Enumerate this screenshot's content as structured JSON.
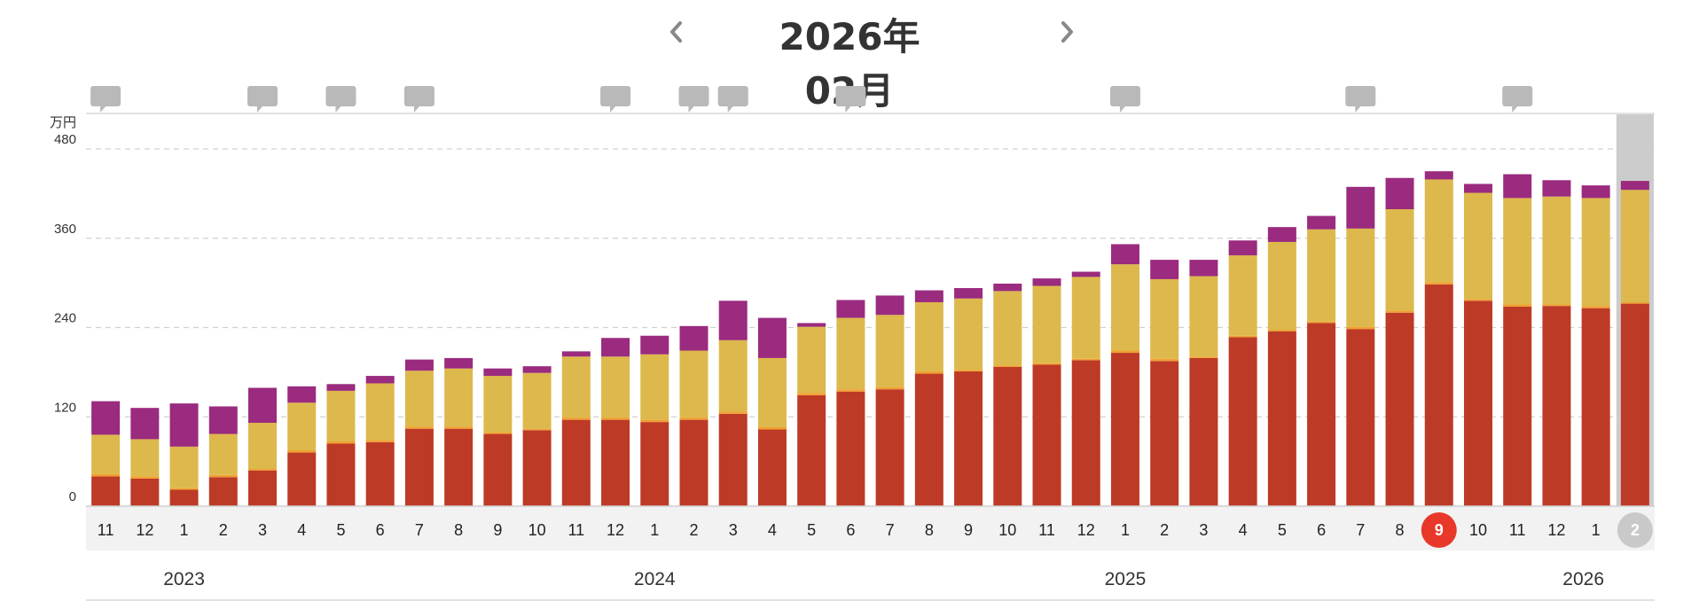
{
  "header": {
    "month_title": "2026年02月",
    "prev_icon": "chevron-left-icon",
    "next_icon": "chevron-right-icon"
  },
  "chart_data": {
    "type": "bar",
    "stacked": true,
    "ylabel_unit": "万円",
    "ylim": [
      0,
      480
    ],
    "yticks": [
      0,
      120,
      240,
      360,
      480
    ],
    "grid": true,
    "categories": [
      "11",
      "12",
      "1",
      "2",
      "3",
      "4",
      "5",
      "6",
      "7",
      "8",
      "9",
      "10",
      "11",
      "12",
      "1",
      "2",
      "3",
      "4",
      "5",
      "6",
      "7",
      "8",
      "9",
      "10",
      "11",
      "12",
      "1",
      "2",
      "3",
      "4",
      "5",
      "6",
      "7",
      "8",
      "9",
      "10",
      "11",
      "12",
      "1",
      "2"
    ],
    "years": [
      {
        "label": "2023",
        "index": 2
      },
      {
        "label": "2024",
        "index": 14
      },
      {
        "label": "2025",
        "index": 26
      },
      {
        "label": "2026",
        "index": 38
      }
    ],
    "series": [
      {
        "color": "#bd3a26",
        "values": [
          40,
          37,
          22,
          39,
          48,
          72,
          84,
          86,
          104,
          104,
          97,
          102,
          116,
          116,
          113,
          116,
          124,
          103,
          149,
          154,
          157,
          178,
          181,
          187,
          190,
          196,
          206,
          195,
          199,
          227,
          235,
          246,
          238,
          260,
          298,
          276,
          268,
          269,
          266,
          272
        ]
      },
      {
        "color": "#f0a030",
        "values": [
          3,
          3,
          2,
          3,
          2,
          3,
          3,
          3,
          3,
          3,
          2,
          2,
          3,
          3,
          3,
          3,
          3,
          3,
          3,
          3,
          3,
          3,
          2,
          2,
          2,
          2,
          3,
          3,
          2,
          2,
          2,
          2,
          3,
          3,
          3,
          2,
          3,
          2,
          3,
          2
        ]
      },
      {
        "color": "#ddb84c",
        "values": [
          53,
          50,
          56,
          55,
          62,
          64,
          68,
          76,
          75,
          78,
          76,
          75,
          82,
          82,
          88,
          90,
          96,
          93,
          89,
          96,
          97,
          93,
          96,
          100,
          104,
          110,
          116,
          107,
          108,
          108,
          118,
          124,
          132,
          136,
          138,
          143,
          143,
          145,
          145,
          151
        ]
      },
      {
        "color": "#9a2b7e",
        "values": [
          45,
          42,
          58,
          37,
          47,
          22,
          9,
          10,
          15,
          14,
          10,
          9,
          7,
          25,
          25,
          33,
          53,
          54,
          5,
          24,
          26,
          16,
          14,
          10,
          10,
          7,
          27,
          26,
          22,
          20,
          20,
          18,
          56,
          42,
          11,
          12,
          32,
          22,
          17,
          12
        ]
      }
    ],
    "notes_at": [
      0,
      4,
      6,
      8,
      13,
      15,
      16,
      19,
      26,
      32,
      36
    ],
    "highlight_label": {
      "index": 34,
      "label": "9",
      "color": "#e8382a"
    },
    "current_label": {
      "index": 39,
      "label": "2",
      "color": "#c9c9c9"
    },
    "comment_icon": "speech-bubble-icon",
    "colors": {
      "grid": "#d0d0d0",
      "axis_band": "#f2f2f2",
      "current_column": "#cccccc"
    }
  }
}
